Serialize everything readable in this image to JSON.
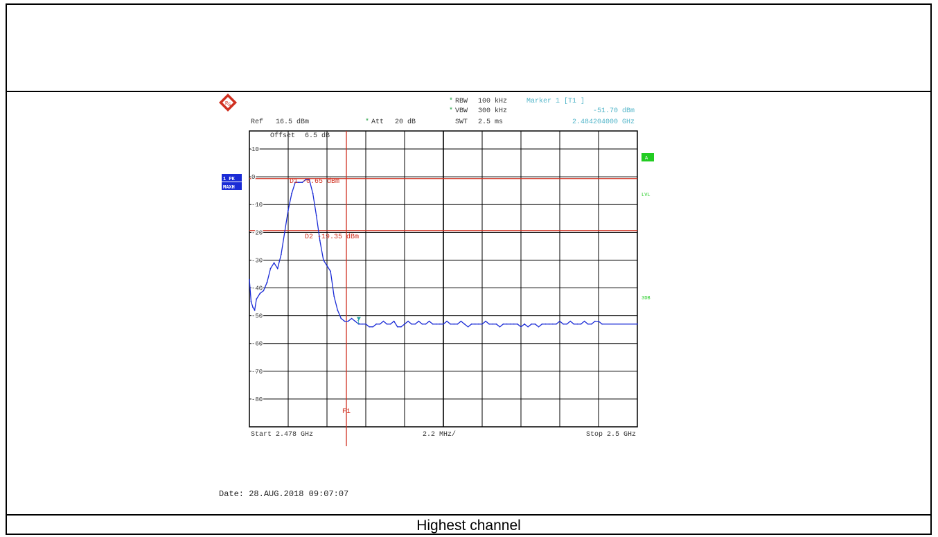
{
  "header": {
    "rbw_label": "RBW",
    "rbw_value": "100 kHz",
    "vbw_label": "VBW",
    "vbw_value": "300 kHz",
    "swt_label": "SWT",
    "swt_value": "2.5 ms",
    "marker_label": "Marker 1 [T1 ]",
    "marker_level": "-51.70 dBm",
    "marker_freq": "2.484204000 GHz",
    "ref_label": "Ref",
    "ref_value": "16.5 dBm",
    "att_label": "Att",
    "att_value": "20 dB",
    "star": "*"
  },
  "screen": {
    "offset_label": "Offset",
    "offset_value": "6.5 dB",
    "trace_badge_1": "1 PK",
    "trace_badge_2": "MAXH",
    "side_a": "A",
    "side_lvl": "LVL",
    "side_3db": "3DB",
    "d1_label": "D1",
    "d1_value": "-0.65 dBm",
    "d2_label": "D2",
    "d2_value": "-19.35 dBm",
    "f1_label": "F1",
    "marker_num": "1",
    "start_label": "Start 2.478 GHz",
    "span_label": "2.2 MHz/",
    "stop_label": "Stop 2.5 GHz"
  },
  "footer": {
    "date_label": "Date:",
    "date_value": "28.AUG.2018",
    "time_value": "09:07:07"
  },
  "caption": "Highest channel",
  "colors": {
    "trace": "#1a2bd6",
    "display_line": "#d03020",
    "marker": "#20a0a0",
    "grid": "#000000",
    "annotation": "#4fb4c8",
    "side_label": "#22cc22",
    "badge": "#1a2bd6"
  },
  "chart_data": {
    "type": "line",
    "title": "",
    "xlabel": "",
    "ylabel": "",
    "x_unit": "GHz",
    "y_unit": "dBm",
    "xlim": [
      2.478,
      2.5
    ],
    "ylim": [
      -90,
      16.5
    ],
    "y_ticks": [
      10,
      0,
      -10,
      -20,
      -30,
      -40,
      -50,
      -60,
      -70,
      -80
    ],
    "grid": true,
    "x_divisions": 10,
    "display_lines": [
      {
        "name": "D1",
        "value": -0.65
      },
      {
        "name": "D2",
        "value": -19.35
      }
    ],
    "frequency_line": {
      "name": "F1",
      "value": 2.4835
    },
    "marker": {
      "name": "1",
      "x": 2.484204,
      "y": -51.7
    },
    "series": [
      {
        "values": [
          [
            2.478,
            -37
          ],
          [
            2.4781,
            -45
          ],
          [
            2.4782,
            -47
          ],
          [
            2.4783,
            -48
          ],
          [
            2.4784,
            -44
          ],
          [
            2.4786,
            -42
          ],
          [
            2.4788,
            -41
          ],
          [
            2.479,
            -38
          ],
          [
            2.4792,
            -33
          ],
          [
            2.4794,
            -31
          ],
          [
            2.4796,
            -33
          ],
          [
            2.4798,
            -28
          ],
          [
            2.48,
            -20
          ],
          [
            2.4802,
            -12
          ],
          [
            2.4804,
            -6
          ],
          [
            2.4806,
            -2
          ],
          [
            2.4808,
            -2
          ],
          [
            2.481,
            -2
          ],
          [
            2.4812,
            -1
          ],
          [
            2.4814,
            -1
          ],
          [
            2.4816,
            -6
          ],
          [
            2.4818,
            -14
          ],
          [
            2.482,
            -23
          ],
          [
            2.4822,
            -30
          ],
          [
            2.4824,
            -32
          ],
          [
            2.4826,
            -34
          ],
          [
            2.4828,
            -43
          ],
          [
            2.483,
            -48
          ],
          [
            2.4832,
            -51
          ],
          [
            2.4834,
            -52
          ],
          [
            2.4836,
            -52
          ],
          [
            2.4838,
            -51
          ],
          [
            2.484,
            -52
          ],
          [
            2.4842,
            -53
          ],
          [
            2.4844,
            -53
          ],
          [
            2.4846,
            -53
          ],
          [
            2.4848,
            -54
          ],
          [
            2.485,
            -54
          ],
          [
            2.4852,
            -53
          ],
          [
            2.4854,
            -53
          ],
          [
            2.4856,
            -52
          ],
          [
            2.4858,
            -53
          ],
          [
            2.486,
            -53
          ],
          [
            2.4862,
            -52
          ],
          [
            2.4864,
            -54
          ],
          [
            2.4866,
            -54
          ],
          [
            2.4868,
            -53
          ],
          [
            2.487,
            -52
          ],
          [
            2.4872,
            -53
          ],
          [
            2.4874,
            -53
          ],
          [
            2.4876,
            -52
          ],
          [
            2.4878,
            -53
          ],
          [
            2.488,
            -53
          ],
          [
            2.4882,
            -52
          ],
          [
            2.4884,
            -53
          ],
          [
            2.4886,
            -53
          ],
          [
            2.4888,
            -53
          ],
          [
            2.489,
            -53
          ],
          [
            2.4892,
            -52
          ],
          [
            2.4894,
            -53
          ],
          [
            2.4896,
            -53
          ],
          [
            2.4898,
            -53
          ],
          [
            2.49,
            -52
          ],
          [
            2.4902,
            -53
          ],
          [
            2.4904,
            -54
          ],
          [
            2.4906,
            -53
          ],
          [
            2.4908,
            -53
          ],
          [
            2.491,
            -53
          ],
          [
            2.4912,
            -53
          ],
          [
            2.4914,
            -52
          ],
          [
            2.4916,
            -53
          ],
          [
            2.4918,
            -53
          ],
          [
            2.492,
            -53
          ],
          [
            2.4922,
            -54
          ],
          [
            2.4924,
            -53
          ],
          [
            2.4926,
            -53
          ],
          [
            2.4928,
            -53
          ],
          [
            2.493,
            -53
          ],
          [
            2.4932,
            -53
          ],
          [
            2.4934,
            -54
          ],
          [
            2.4936,
            -53
          ],
          [
            2.4938,
            -54
          ],
          [
            2.494,
            -53
          ],
          [
            2.4942,
            -53
          ],
          [
            2.4944,
            -54
          ],
          [
            2.4946,
            -53
          ],
          [
            2.4948,
            -53
          ],
          [
            2.495,
            -53
          ],
          [
            2.4952,
            -53
          ],
          [
            2.4954,
            -53
          ],
          [
            2.4956,
            -52
          ],
          [
            2.4958,
            -53
          ],
          [
            2.496,
            -53
          ],
          [
            2.4962,
            -52
          ],
          [
            2.4964,
            -53
          ],
          [
            2.4966,
            -53
          ],
          [
            2.4968,
            -53
          ],
          [
            2.497,
            -52
          ],
          [
            2.4972,
            -53
          ],
          [
            2.4974,
            -53
          ],
          [
            2.4976,
            -52
          ],
          [
            2.4978,
            -52
          ],
          [
            2.498,
            -53
          ],
          [
            2.5,
            -53
          ]
        ]
      }
    ]
  }
}
